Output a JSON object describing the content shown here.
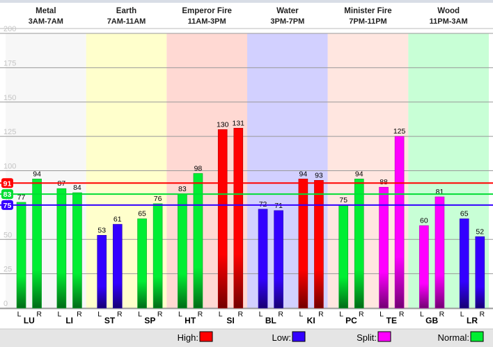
{
  "elements": [
    {
      "name": "Metal",
      "time": "3AM-7AM",
      "bg": "#f7f7f7"
    },
    {
      "name": "Earth",
      "time": "7AM-11AM",
      "bg": "#ffffcc"
    },
    {
      "name": "Emperor Fire",
      "time": "11AM-3PM",
      "bg": "#ffd9d3"
    },
    {
      "name": "Water",
      "time": "3PM-7PM",
      "bg": "#d2d0ff"
    },
    {
      "name": "Minister Fire",
      "time": "7PM-11PM",
      "bg": "#ffe6e0"
    },
    {
      "name": "Wood",
      "time": "11PM-3AM",
      "bg": "#c8ffd6"
    }
  ],
  "colors": {
    "high": "#ff0000",
    "low": "#3300ff",
    "split": "#ff00ff",
    "normal": "#00ee33"
  },
  "reference_lines": [
    {
      "label": "91",
      "value": 91,
      "color": "#ff0000"
    },
    {
      "label": "83",
      "value": 83,
      "color": "#00dd33"
    },
    {
      "label": "75",
      "value": 75,
      "color": "#3300ff"
    }
  ],
  "legend": [
    {
      "label": "High:",
      "key": "high"
    },
    {
      "label": "Low:",
      "key": "low"
    },
    {
      "label": "Split:",
      "key": "split"
    },
    {
      "label": "Normal:",
      "key": "normal"
    }
  ],
  "chart_data": {
    "type": "bar",
    "ylim": [
      0,
      200
    ],
    "yticks": [
      0,
      25,
      50,
      75,
      100,
      125,
      150,
      175,
      200
    ],
    "side_labels": [
      "L",
      "R"
    ],
    "meridians": [
      {
        "name": "LU",
        "L": 77,
        "R": 94,
        "status": "normal"
      },
      {
        "name": "LI",
        "L": 87,
        "R": 84,
        "status": "normal"
      },
      {
        "name": "ST",
        "L": 53,
        "R": 61,
        "status": "low"
      },
      {
        "name": "SP",
        "L": 65,
        "R": 76,
        "status": "normal"
      },
      {
        "name": "HT",
        "L": 83,
        "R": 98,
        "status": "normal"
      },
      {
        "name": "SI",
        "L": 130,
        "R": 131,
        "status": "high"
      },
      {
        "name": "BL",
        "L": 72,
        "R": 71,
        "status": "low"
      },
      {
        "name": "KI",
        "L": 94,
        "R": 93,
        "status": "high"
      },
      {
        "name": "PC",
        "L": 75,
        "R": 94,
        "status": "normal"
      },
      {
        "name": "TE",
        "L": 88,
        "R": 125,
        "status": "split"
      },
      {
        "name": "GB",
        "L": 60,
        "R": 81,
        "status": "split"
      },
      {
        "name": "LR",
        "L": 65,
        "R": 52,
        "status": "low"
      }
    ]
  }
}
